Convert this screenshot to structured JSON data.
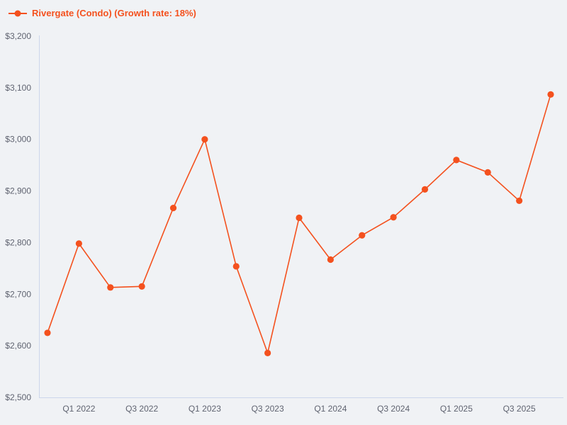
{
  "legend": {
    "label": "Rivergate (Condo) (Growth rate: 18%)"
  },
  "chart_data": {
    "type": "line",
    "title": "",
    "background": "#f0f2f5",
    "axis_color": "#ccd6eb",
    "label_color": "#5f6370",
    "grid": false,
    "legend_position": "top-left",
    "ylim": [
      2500,
      3200
    ],
    "ytick_values": [
      2500,
      2600,
      2700,
      2800,
      2900,
      3000,
      3100,
      3200
    ],
    "yticks": [
      "$2,500",
      "$2,600",
      "$2,700",
      "$2,800",
      "$2,900",
      "$3,000",
      "$3,100",
      "$3,200"
    ],
    "xticks": [
      {
        "label": "Q1 2022",
        "index": 1
      },
      {
        "label": "Q3 2022",
        "index": 3
      },
      {
        "label": "Q1 2023",
        "index": 5
      },
      {
        "label": "Q3 2023",
        "index": 7
      },
      {
        "label": "Q1 2024",
        "index": 9
      },
      {
        "label": "Q3 2024",
        "index": 11
      },
      {
        "label": "Q1 2025",
        "index": 13
      },
      {
        "label": "Q3 2025",
        "index": 15
      }
    ],
    "series": [
      {
        "name": "Rivergate (Condo) (Growth rate: 18%)",
        "color": "#f4511e",
        "x": [
          "Q4 2021",
          "Q1 2022",
          "Q2 2022",
          "Q3 2022",
          "Q4 2022",
          "Q1 2023",
          "Q2 2023",
          "Q3 2023",
          "Q4 2023",
          "Q1 2024",
          "Q2 2024",
          "Q3 2024",
          "Q4 2024",
          "Q1 2025",
          "Q2 2025",
          "Q3 2025",
          "Q4 2025"
        ],
        "values": [
          2625,
          2798,
          2713,
          2715,
          2867,
          3000,
          2754,
          2586,
          2848,
          2767,
          2814,
          2849,
          2903,
          2960,
          2936,
          2881,
          3087
        ]
      }
    ]
  }
}
